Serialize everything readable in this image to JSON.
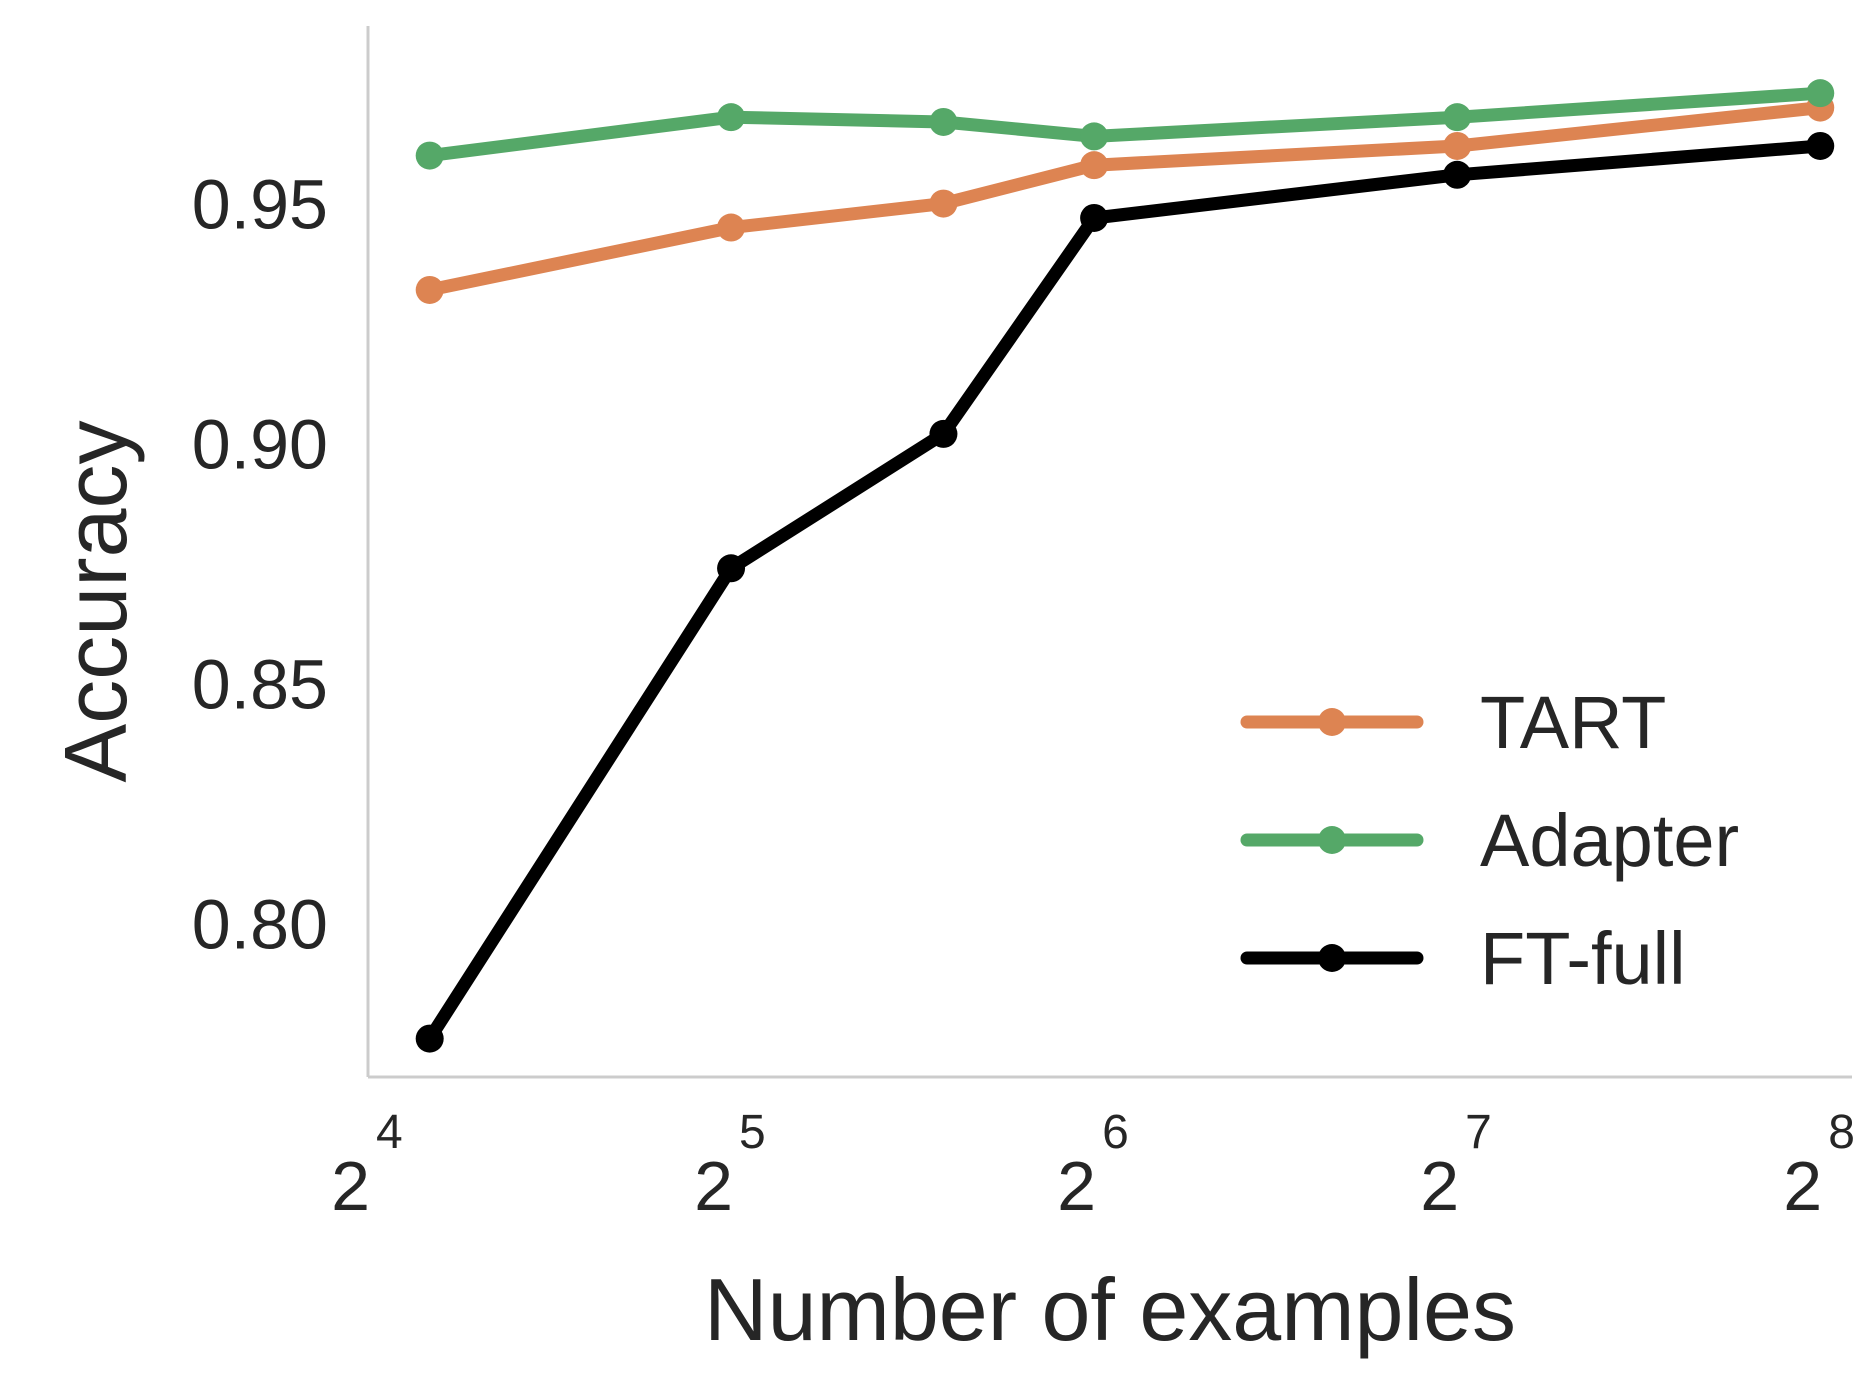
{
  "chart_data": {
    "type": "line",
    "title": "",
    "xlabel": "Number of examples",
    "ylabel": "Accuracy",
    "x_scale": "log2",
    "x_tick_labels": [
      {
        "base": "2",
        "exp": "4",
        "value": 16
      },
      {
        "base": "2",
        "exp": "5",
        "value": 32
      },
      {
        "base": "2",
        "exp": "6",
        "value": 64
      },
      {
        "base": "2",
        "exp": "7",
        "value": 128
      },
      {
        "base": "2",
        "exp": "8",
        "value": 256
      }
    ],
    "y_tick_labels": [
      "0.80",
      "0.85",
      "0.90",
      "0.95"
    ],
    "y_ticks": [
      0.8,
      0.85,
      0.9,
      0.95
    ],
    "xlim": [
      16,
      272
    ],
    "ylim": [
      0.768,
      0.987
    ],
    "grid": false,
    "legend_position": "lower-right",
    "x": [
      18,
      32,
      48,
      64,
      128,
      256
    ],
    "series": [
      {
        "name": "TART",
        "color": "#dd8452",
        "values": [
          0.932,
          0.945,
          0.95,
          0.958,
          0.962,
          0.97
        ]
      },
      {
        "name": "Adapter",
        "color": "#55a868",
        "values": [
          0.96,
          0.968,
          0.967,
          0.964,
          0.968,
          0.973
        ]
      },
      {
        "name": "FT-full",
        "color": "#000000",
        "values": [
          0.776,
          0.874,
          0.902,
          0.947,
          0.956,
          0.962
        ]
      }
    ]
  }
}
